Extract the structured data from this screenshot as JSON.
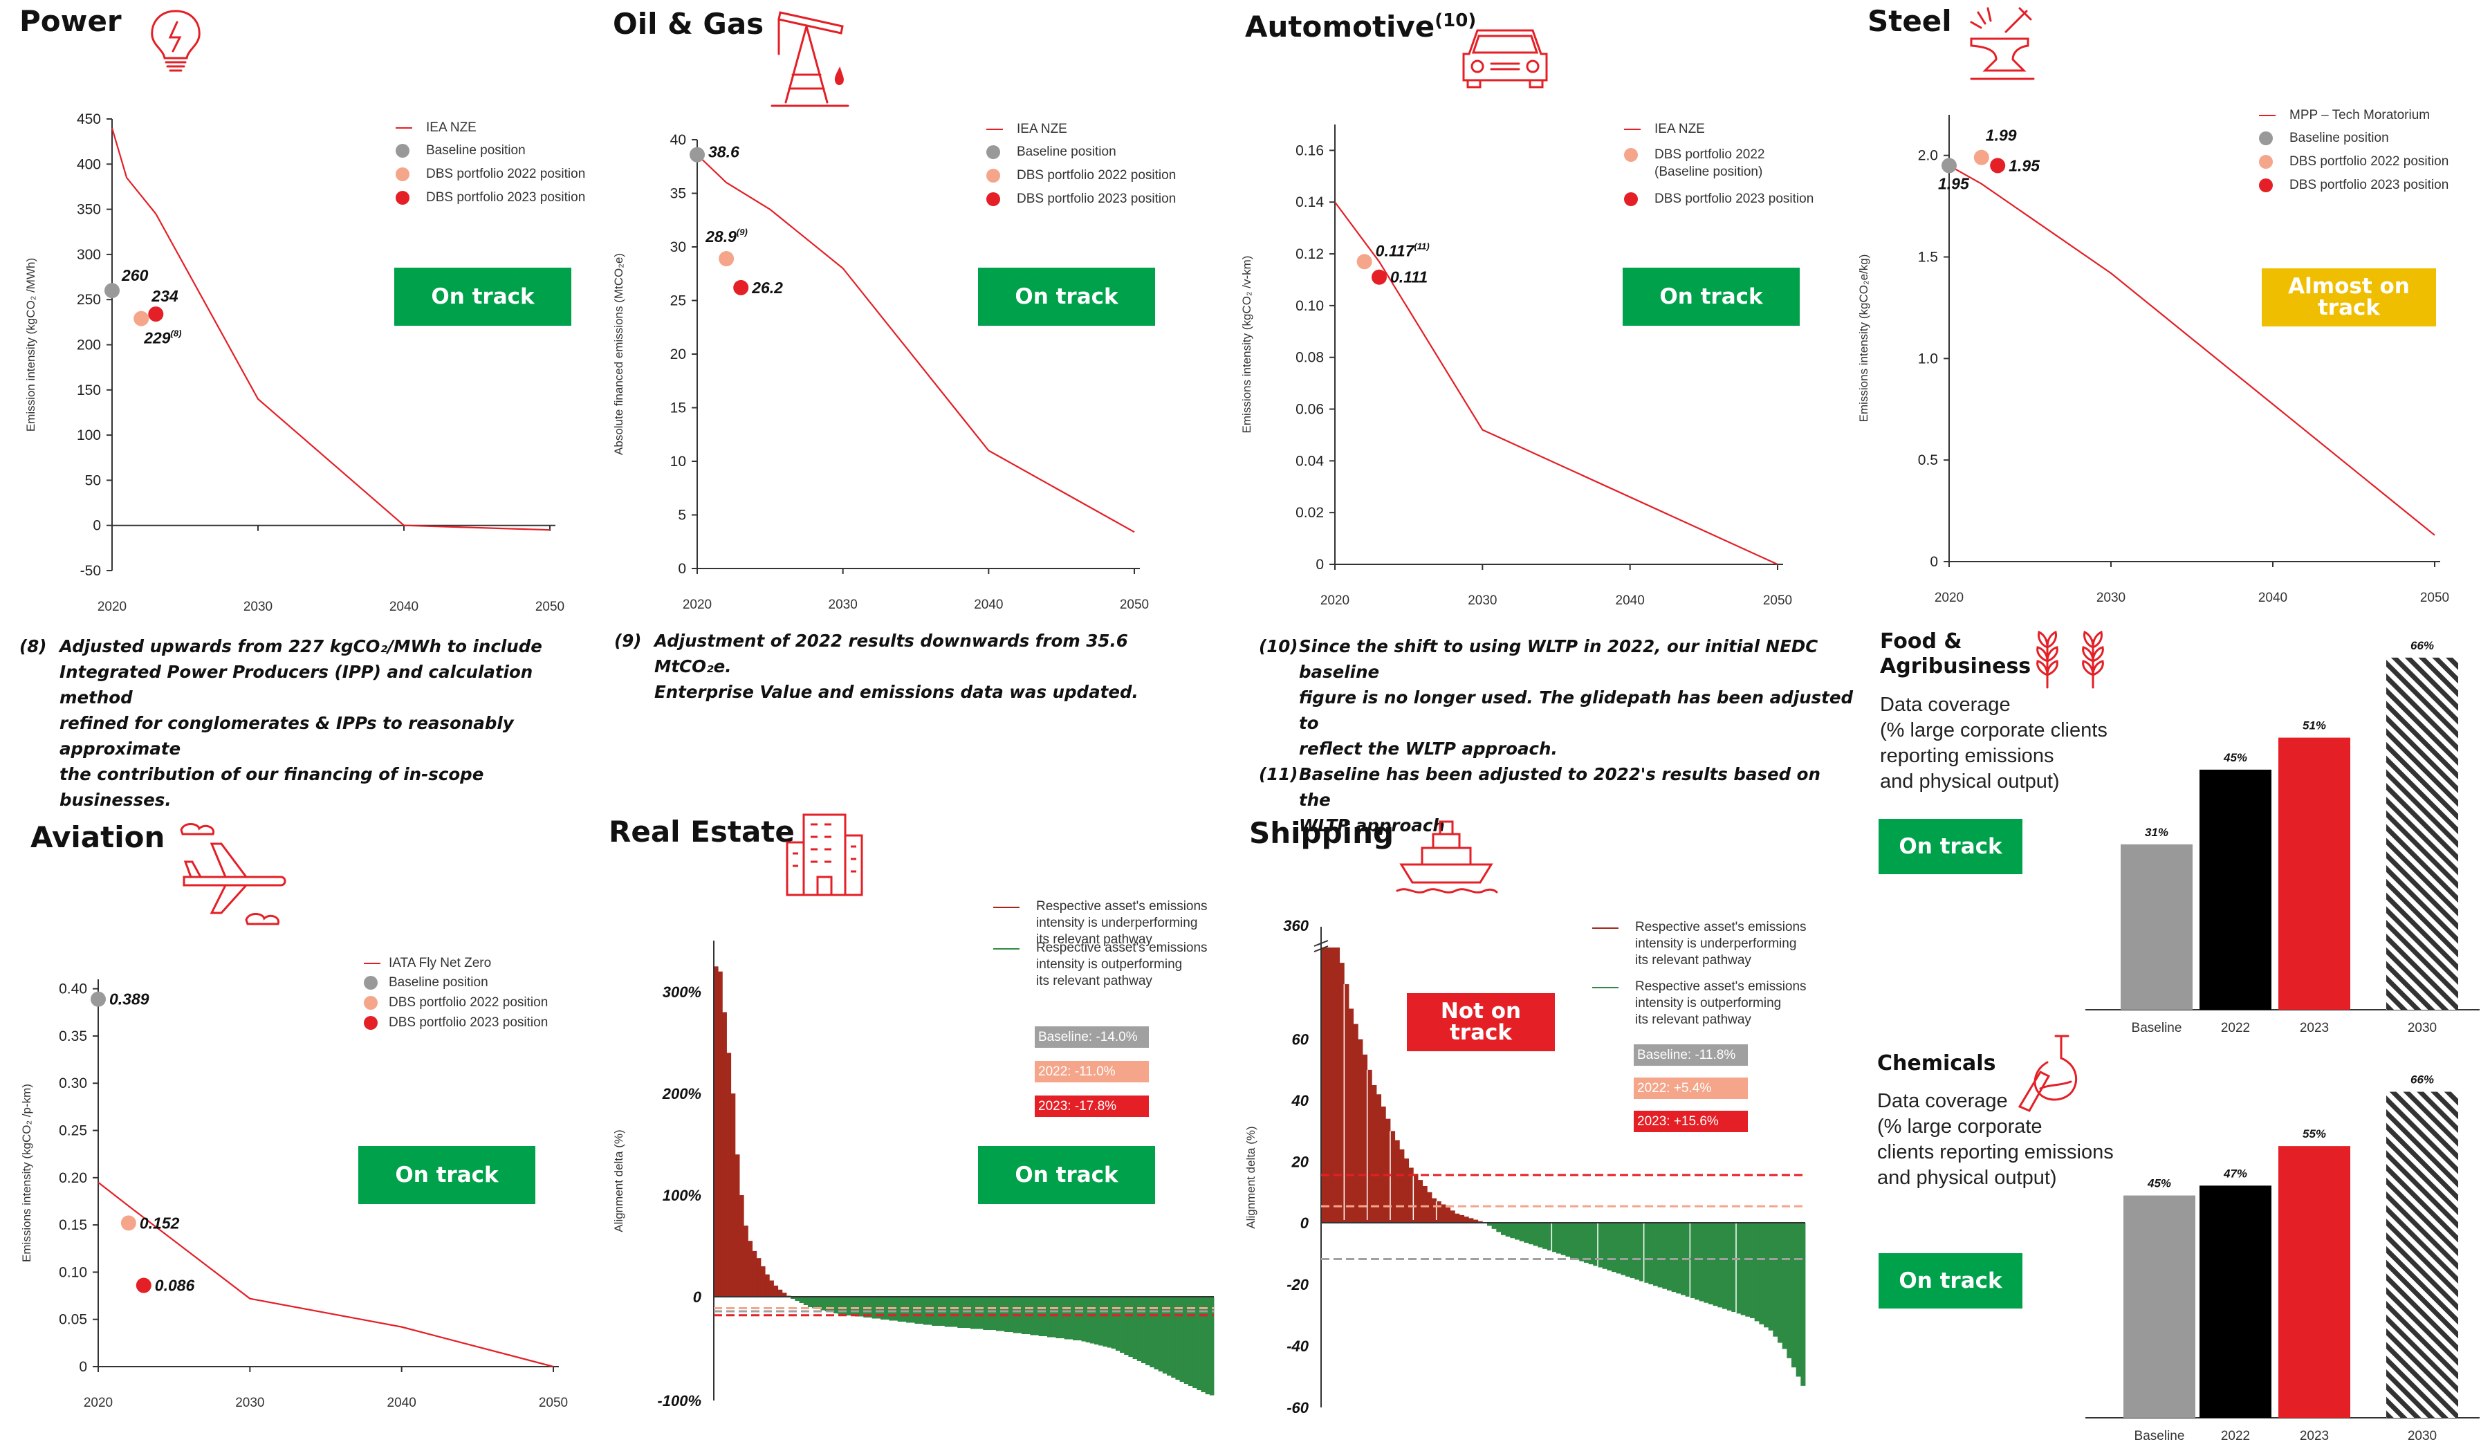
{
  "colors": {
    "red": "#e41f26",
    "green": "#00a14b",
    "yellow": "#f0be00",
    "gray": "#999999",
    "salmon": "#f4a58a",
    "dark_red": "#a3291c",
    "dark_green": "#2e8b43"
  },
  "power": {
    "title": "Power",
    "badge": "On track",
    "legend": [
      "IEA NZE",
      "Baseline position",
      "DBS portfolio 2022 position",
      "DBS portfolio 2023 position"
    ],
    "footnote_num": "(8)",
    "footnote": [
      "Adjusted upwards from 227 kgCO₂/MWh to include",
      "Integrated Power Producers (IPP) and calculation method",
      "refined for conglomerates & IPPs to reasonably approximate",
      "the contribution of our financing of in-scope businesses."
    ]
  },
  "oilgas": {
    "title": "Oil & Gas",
    "badge": "On track",
    "legend": [
      "IEA NZE",
      "Baseline position",
      "DBS portfolio 2022 position",
      "DBS portfolio 2023 position"
    ],
    "footnote_num": "(9)",
    "footnote": [
      "Adjustment of 2022 results downwards from 35.6 MtCO₂e.",
      "Enterprise Value and emissions data was updated."
    ]
  },
  "auto": {
    "title": "Automotive",
    "title_sup": "(10)",
    "badge": "On track",
    "legend": [
      "IEA NZE",
      "DBS portfolio 2022",
      "(Baseline position)",
      "DBS portfolio 2023 position"
    ],
    "footnotes": [
      {
        "num": "(10)",
        "lines": [
          "Since the shift to using WLTP in 2022, our initial NEDC baseline",
          "figure is no longer used. The glidepath has been adjusted to",
          "reflect the WLTP approach."
        ]
      },
      {
        "num": "(11)",
        "lines": [
          "Baseline has been adjusted to 2022's results based on the",
          "WLTP approach"
        ]
      }
    ]
  },
  "steel": {
    "title": "Steel",
    "badge": "Almost on track",
    "legend": [
      "MPP – Tech Moratorium",
      "Baseline position",
      "DBS portfolio 2022 position",
      "DBS portfolio 2023 position"
    ]
  },
  "aviation": {
    "title": "Aviation",
    "badge": "On track",
    "legend": [
      "IATA Fly Net Zero",
      "Baseline position",
      "DBS portfolio 2022 position",
      "DBS portfolio 2023 position"
    ]
  },
  "realestate": {
    "title": "Real Estate",
    "badge": "On track",
    "legend_under": [
      "Respective asset's emissions",
      "intensity is underperforming",
      "its relevant pathway"
    ],
    "legend_out": [
      "Respective asset's emissions",
      "intensity is outperforming",
      "its relevant pathway"
    ],
    "boxes": [
      "Baseline: -14.0%",
      "2022: -11.0%",
      "2023: -17.8%"
    ]
  },
  "shipping": {
    "title": "Shipping",
    "badge": "Not on track",
    "legend_under": [
      "Respective asset's emissions",
      "intensity is underperforming",
      "its relevant pathway"
    ],
    "legend_out": [
      "Respective asset's emissions",
      "intensity is outperforming",
      "its relevant pathway"
    ],
    "boxes": [
      "Baseline: -11.8%",
      "2022: +5.4%",
      "2023: +15.6%"
    ]
  },
  "food": {
    "title": [
      "Food &",
      "Agribusiness"
    ],
    "subtitle": [
      "Data coverage",
      "(% large corporate clients",
      "reporting emissions",
      "and physical output)"
    ],
    "badge": "On track"
  },
  "chemicals": {
    "title": "Chemicals",
    "subtitle": [
      "Data coverage",
      "(% large corporate",
      "clients reporting emissions",
      "and physical output)"
    ],
    "badge": "On track"
  },
  "chart_data": [
    {
      "id": "power",
      "type": "line",
      "ylabel": "Emission intensity (kgCO₂ /MWh)",
      "xlim": [
        2020,
        2050
      ],
      "ylim": [
        -50,
        450
      ],
      "xticks": [
        2020,
        2030,
        2040,
        2050
      ],
      "yticks": [
        -50,
        0,
        50,
        100,
        150,
        200,
        250,
        300,
        350,
        400,
        450
      ],
      "series": [
        {
          "name": "IEA NZE",
          "x": [
            2020,
            2021,
            2023,
            2030,
            2040,
            2050
          ],
          "y": [
            440,
            385,
            345,
            140,
            0,
            -5
          ]
        }
      ],
      "points": [
        {
          "name": "Baseline position",
          "x": 2020,
          "y": 260,
          "label": "260"
        },
        {
          "name": "DBS portfolio 2022 position",
          "x": 2022,
          "y": 229,
          "label": "229",
          "sup": "(8)"
        },
        {
          "name": "DBS portfolio 2023 position",
          "x": 2023,
          "y": 234,
          "label": "234"
        }
      ]
    },
    {
      "id": "oilgas",
      "type": "line",
      "ylabel": "Absolute financed emissions (MtCO₂e)",
      "xlim": [
        2020,
        2050
      ],
      "ylim": [
        0,
        40
      ],
      "xticks": [
        2020,
        2030,
        2040,
        2050
      ],
      "yticks": [
        0,
        5,
        10,
        15,
        20,
        25,
        30,
        35,
        40
      ],
      "series": [
        {
          "name": "IEA NZE",
          "x": [
            2020,
            2022,
            2025,
            2030,
            2040,
            2050
          ],
          "y": [
            38.6,
            36,
            33.5,
            28,
            11,
            3.4
          ]
        }
      ],
      "points": [
        {
          "name": "Baseline position",
          "x": 2020,
          "y": 38.6,
          "label": "38.6"
        },
        {
          "name": "DBS portfolio 2022 position",
          "x": 2022,
          "y": 28.9,
          "label": "28.9",
          "sup": "(9)"
        },
        {
          "name": "DBS portfolio 2023 position",
          "x": 2023,
          "y": 26.2,
          "label": "26.2"
        }
      ]
    },
    {
      "id": "auto",
      "type": "line",
      "ylabel": "Emissions intensity (kgCO₂ /v-km)",
      "xlim": [
        2020,
        2050
      ],
      "ylim": [
        0,
        0.17
      ],
      "xticks": [
        2020,
        2030,
        2040,
        2050
      ],
      "yticks": [
        0,
        0.02,
        0.04,
        0.06,
        0.08,
        0.1,
        0.12,
        0.14,
        0.16
      ],
      "ytick_labels": [
        "0",
        "0.02",
        "0.04",
        "0.06",
        "0.08",
        "0.10",
        "0.12",
        "0.14",
        "0.16"
      ],
      "series": [
        {
          "name": "IEA NZE",
          "x": [
            2020,
            2023,
            2030,
            2050
          ],
          "y": [
            0.14,
            0.117,
            0.052,
            0
          ]
        }
      ],
      "points": [
        {
          "name": "DBS portfolio 2022 (Baseline position)",
          "x": 2022,
          "y": 0.117,
          "label": "0.117",
          "sup": "(11)"
        },
        {
          "name": "DBS portfolio 2023 position",
          "x": 2023,
          "y": 0.111,
          "label": "0.111"
        }
      ]
    },
    {
      "id": "steel",
      "type": "line",
      "ylabel": "Emissions intensity (kgCO₂e/kg)",
      "xlim": [
        2020,
        2050
      ],
      "ylim": [
        0,
        2.2
      ],
      "xticks": [
        2020,
        2030,
        2040,
        2050
      ],
      "yticks": [
        0,
        0.5,
        1.0,
        1.5,
        2.0
      ],
      "ytick_labels": [
        "0",
        "0.5",
        "1.0",
        "1.5",
        "2.0"
      ],
      "series": [
        {
          "name": "MPP – Tech Moratorium",
          "x": [
            2020,
            2022,
            2030,
            2050
          ],
          "y": [
            1.95,
            1.86,
            1.42,
            0.13
          ]
        }
      ],
      "points": [
        {
          "name": "Baseline position",
          "x": 2020,
          "y": 1.95,
          "label": "1.95"
        },
        {
          "name": "DBS portfolio 2022 position",
          "x": 2022,
          "y": 1.99,
          "label": "1.99"
        },
        {
          "name": "DBS portfolio 2023 position",
          "x": 2023,
          "y": 1.95,
          "label": "1.95"
        }
      ]
    },
    {
      "id": "aviation",
      "type": "line",
      "ylabel": "Emissions intensity (kgCO₂ /p-km)",
      "xlim": [
        2020,
        2050
      ],
      "ylim": [
        0,
        0.41
      ],
      "xticks": [
        2020,
        2030,
        2040,
        2050
      ],
      "yticks": [
        0,
        0.05,
        0.1,
        0.15,
        0.2,
        0.25,
        0.3,
        0.35,
        0.4
      ],
      "ytick_labels": [
        "0",
        "0.05",
        "0.10",
        "0.15",
        "0.20",
        "0.25",
        "0.30",
        "0.35",
        "0.40"
      ],
      "series": [
        {
          "name": "IATA Fly Net Zero",
          "x": [
            2020,
            2022,
            2030,
            2040,
            2050
          ],
          "y": [
            0.195,
            0.17,
            0.072,
            0.042,
            0
          ]
        }
      ],
      "points": [
        {
          "name": "Baseline position",
          "x": 2020,
          "y": 0.389,
          "label": "0.389"
        },
        {
          "name": "DBS portfolio 2022 position",
          "x": 2022,
          "y": 0.152,
          "label": "0.152"
        },
        {
          "name": "DBS portfolio 2023 position",
          "x": 2023,
          "y": 0.086,
          "label": "0.086"
        }
      ]
    },
    {
      "id": "realestate",
      "type": "bar",
      "ylabel": "Alignment delta (%)",
      "ylim": [
        -100,
        330
      ],
      "yticks": [
        -100,
        0,
        100,
        200,
        300
      ],
      "ytick_labels": [
        "-100%",
        "0",
        "100%",
        "200%",
        "300%"
      ],
      "reference_lines": [
        {
          "name": "Baseline",
          "y": -14.0
        },
        {
          "name": "2022",
          "y": -11.0
        },
        {
          "name": "2023",
          "y": -17.8
        }
      ],
      "values": [
        325,
        320,
        280,
        240,
        200,
        140,
        100,
        70,
        55,
        45,
        38,
        30,
        22,
        16,
        11,
        7,
        4,
        1,
        -2,
        -4,
        -6,
        -8,
        -10,
        -11,
        -12,
        -13,
        -14,
        -15,
        -16,
        -17,
        -17,
        -18,
        -18,
        -19,
        -19,
        -20,
        -20,
        -21,
        -21,
        -22,
        -22,
        -23,
        -23,
        -24,
        -24,
        -25,
        -25,
        -26,
        -26,
        -27,
        -27,
        -28,
        -28,
        -28,
        -29,
        -29,
        -29,
        -30,
        -30,
        -30,
        -31,
        -31,
        -31,
        -32,
        -32,
        -32,
        -33,
        -33,
        -34,
        -34,
        -35,
        -35,
        -36,
        -36,
        -37,
        -37,
        -38,
        -38,
        -39,
        -39,
        -40,
        -40,
        -41,
        -41,
        -42,
        -42,
        -43,
        -44,
        -45,
        -46,
        -47,
        -48,
        -49,
        -50,
        -52,
        -54,
        -56,
        -58,
        -60,
        -62,
        -64,
        -66,
        -68,
        -70,
        -72,
        -74,
        -76,
        -78,
        -80,
        -82,
        -84,
        -86,
        -88,
        -90,
        -92,
        -94,
        -95
      ]
    },
    {
      "id": "shipping",
      "type": "bar",
      "ylabel": "Alignment delta (%)",
      "ylim": [
        -60,
        90
      ],
      "yticks": [
        -60,
        -40,
        -20,
        0,
        20,
        40,
        60
      ],
      "ytick_labels": [
        "-60",
        "-40",
        "-20",
        "0",
        "20",
        "40",
        "60"
      ],
      "axis_break_label": "360",
      "reference_lines": [
        {
          "name": "Baseline",
          "y": -11.8
        },
        {
          "name": "2022",
          "y": 5.4
        },
        {
          "name": "2023",
          "y": 15.6
        }
      ],
      "values": [
        90,
        90,
        90,
        90,
        85,
        78,
        70,
        65,
        60,
        55,
        50,
        45,
        42,
        38,
        34,
        30,
        27,
        24,
        21,
        18,
        16,
        14,
        12,
        10,
        8,
        7,
        6,
        5,
        4,
        3,
        2.5,
        2,
        1.5,
        1,
        0.5,
        0,
        -1,
        -2,
        -3,
        -4,
        -4.5,
        -5,
        -5.5,
        -6,
        -6.5,
        -7,
        -7.5,
        -8,
        -8.5,
        -9,
        -9.5,
        -10,
        -10.5,
        -11,
        -11.5,
        -12,
        -12.5,
        -13,
        -13.5,
        -14,
        -14.5,
        -15,
        -15.5,
        -16,
        -16.5,
        -17,
        -17.5,
        -18,
        -18.5,
        -19,
        -19.5,
        -20,
        -20.5,
        -21,
        -21.5,
        -22,
        -22.5,
        -23,
        -23.5,
        -24,
        -24.5,
        -25,
        -25.5,
        -26,
        -26.5,
        -27,
        -27.5,
        -28,
        -28.5,
        -29,
        -29.5,
        -30,
        -30.5,
        -31,
        -32,
        -33,
        -34,
        -35,
        -37,
        -39,
        -41,
        -44,
        -47,
        -50,
        -53
      ]
    },
    {
      "id": "food",
      "type": "bar",
      "categories": [
        "Baseline",
        "2022",
        "2023",
        "2030"
      ],
      "values": [
        31,
        45,
        51,
        66
      ],
      "value_labels": [
        "31%",
        "45%",
        "51%",
        "66%"
      ],
      "ylim": [
        0,
        70
      ]
    },
    {
      "id": "chemicals",
      "type": "bar",
      "categories": [
        "Baseline",
        "2022",
        "2023",
        "2030"
      ],
      "values": [
        45,
        47,
        55,
        66
      ],
      "value_labels": [
        "45%",
        "47%",
        "55%",
        "66%"
      ],
      "ylim": [
        0,
        70
      ]
    }
  ]
}
